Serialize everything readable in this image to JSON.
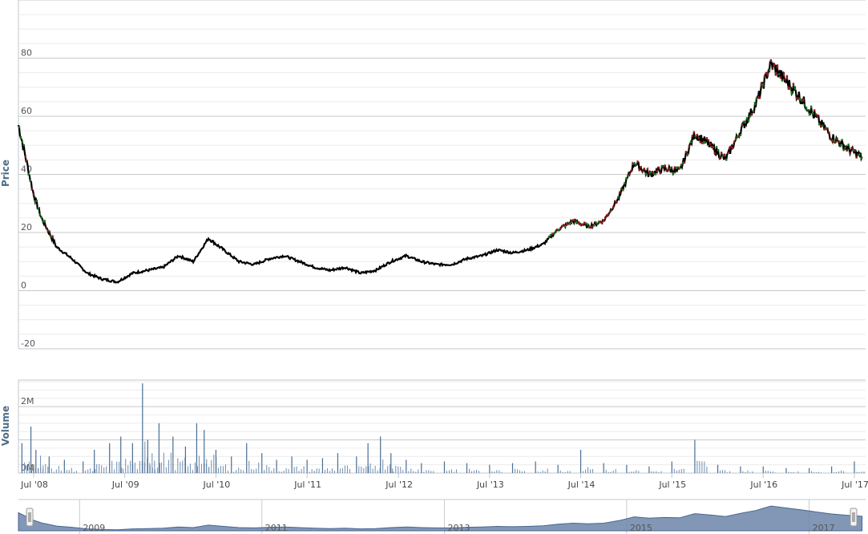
{
  "chart_data": [
    {
      "type": "candlestick",
      "ylabel": "Price",
      "yticks": [
        -20,
        0,
        20,
        40,
        60,
        80
      ],
      "ytick_labels": [
        "-20",
        "0",
        "20",
        "40",
        "60",
        "80"
      ],
      "ylim": [
        -20,
        100
      ],
      "xlim": [
        "2008-05-01",
        "2017-08-15"
      ],
      "grid": true,
      "colors": {
        "line": "#000000",
        "down": "#8b1a1a",
        "up": "#1a6e1a",
        "grid": "#d8d8d8",
        "axis": "#c0c8d0"
      },
      "x": [
        "2008-05-01",
        "2008-06-01",
        "2008-07-01",
        "2008-08-01",
        "2008-10-01",
        "2008-12-01",
        "2009-02-01",
        "2009-04-01",
        "2009-06-01",
        "2009-08-01",
        "2009-10-01",
        "2009-12-01",
        "2010-02-01",
        "2010-04-01",
        "2010-06-01",
        "2010-08-01",
        "2010-10-01",
        "2010-12-01",
        "2011-02-01",
        "2011-04-01",
        "2011-06-01",
        "2011-08-01",
        "2011-10-01",
        "2011-12-01",
        "2012-02-01",
        "2012-04-01",
        "2012-06-01",
        "2012-08-01",
        "2012-10-01",
        "2012-12-01",
        "2013-02-01",
        "2013-04-01",
        "2013-06-01",
        "2013-08-01",
        "2013-10-01",
        "2013-12-01",
        "2014-02-01",
        "2014-04-01",
        "2014-06-01",
        "2014-08-01",
        "2014-10-01",
        "2014-12-01",
        "2015-02-01",
        "2015-04-01",
        "2015-06-01",
        "2015-08-01",
        "2015-10-01",
        "2015-12-01",
        "2016-02-01",
        "2016-04-01",
        "2016-06-01",
        "2016-08-01",
        "2016-10-01",
        "2016-12-01",
        "2017-02-01",
        "2017-04-01",
        "2017-06-01",
        "2017-08-01"
      ],
      "close": [
        57,
        45,
        33,
        25,
        15,
        11,
        6,
        4,
        3,
        6,
        7,
        8,
        12,
        10,
        18,
        14,
        10,
        9,
        11,
        12,
        10,
        8,
        7,
        8,
        6,
        7,
        10,
        12,
        10,
        9,
        9,
        11,
        12,
        14,
        13,
        14,
        16,
        21,
        24,
        22,
        24,
        32,
        44,
        40,
        42,
        41,
        54,
        50,
        45,
        55,
        64,
        78,
        72,
        66,
        59,
        53,
        49,
        46
      ]
    },
    {
      "type": "bar",
      "ylabel": "Volume",
      "yticks": [
        0,
        2000000
      ],
      "ytick_labels": [
        "0M",
        "2M"
      ],
      "ylim": [
        0,
        2800000
      ],
      "grid": true,
      "x": [
        "2008-05-15",
        "2008-06-20",
        "2008-07-10",
        "2008-09-01",
        "2008-11-01",
        "2009-01-15",
        "2009-03-01",
        "2009-05-01",
        "2009-06-15",
        "2009-08-01",
        "2009-09-10",
        "2009-10-01",
        "2009-11-15",
        "2010-01-10",
        "2010-03-01",
        "2010-04-15",
        "2010-05-15",
        "2010-07-01",
        "2010-09-01",
        "2010-11-01",
        "2011-01-01",
        "2011-03-01",
        "2011-05-01",
        "2011-07-01",
        "2011-09-01",
        "2011-11-01",
        "2012-01-15",
        "2012-03-01",
        "2012-04-20",
        "2012-06-01",
        "2012-08-01",
        "2012-10-01",
        "2013-01-01",
        "2013-04-01",
        "2013-07-01",
        "2013-10-01",
        "2014-01-01",
        "2014-04-01",
        "2014-07-01",
        "2014-10-01",
        "2015-01-01",
        "2015-04-01",
        "2015-07-01",
        "2015-10-01",
        "2016-01-01",
        "2016-04-01",
        "2016-07-01",
        "2016-10-01",
        "2017-01-01",
        "2017-04-01",
        "2017-07-01"
      ],
      "values": [
        900000,
        1400000,
        700000,
        500000,
        400000,
        350000,
        700000,
        900000,
        1100000,
        900000,
        2700000,
        1000000,
        1500000,
        1100000,
        800000,
        1500000,
        1300000,
        700000,
        500000,
        900000,
        600000,
        400000,
        500000,
        400000,
        450000,
        600000,
        500000,
        900000,
        1100000,
        600000,
        400000,
        300000,
        350000,
        300000,
        250000,
        300000,
        350000,
        250000,
        700000,
        300000,
        250000,
        200000,
        350000,
        1000000,
        250000,
        200000,
        200000,
        150000,
        150000,
        200000,
        350000
      ]
    }
  ],
  "x_axis": {
    "ticks": [
      "Jul '08",
      "Jul '09",
      "Jul '10",
      "Jul '11",
      "Jul '12",
      "Jul '13",
      "Jul '14",
      "Jul '15",
      "Jul '16",
      "Jul '17"
    ]
  },
  "navigator": {
    "labels": [
      "2009",
      "2011",
      "2013",
      "2015",
      "2017"
    ],
    "colors": {
      "fill": "#6b85a8",
      "line": "#4a6690",
      "handle": "#f2f2f2"
    }
  }
}
